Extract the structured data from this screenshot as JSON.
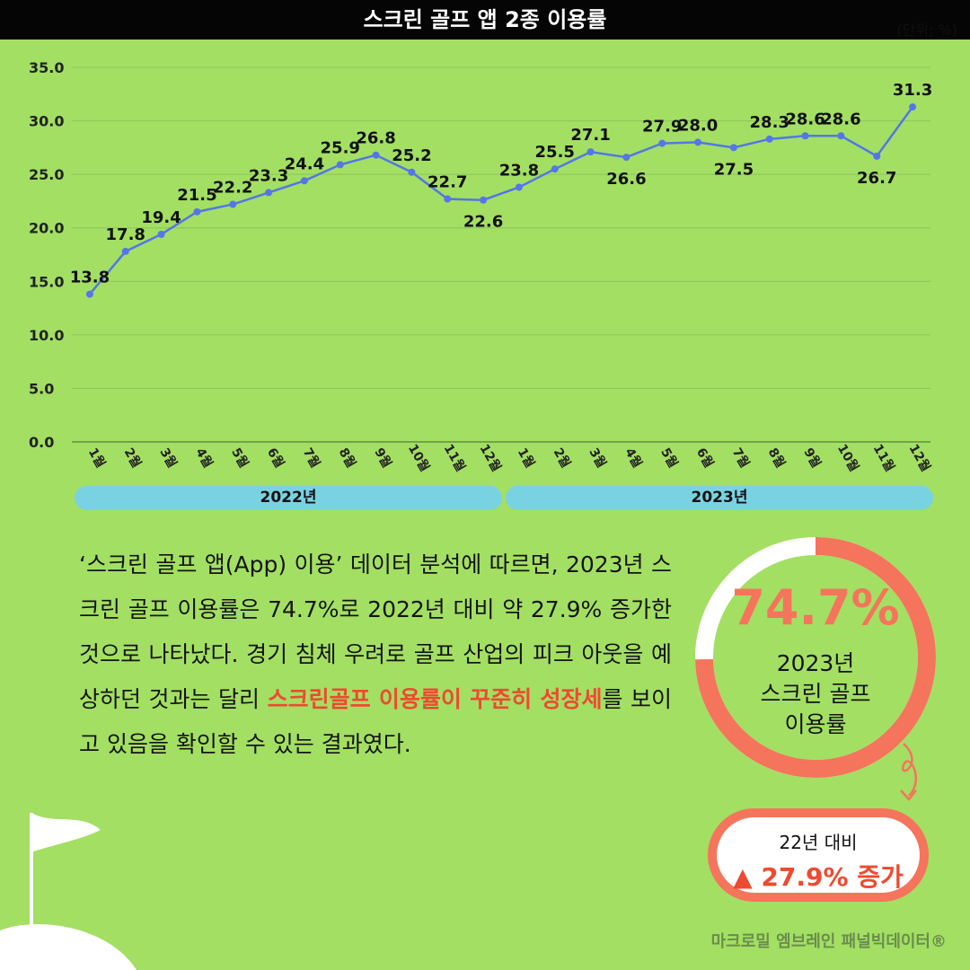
{
  "header": {
    "title": "스크린 골프 앱 2종 이용률",
    "unit": "(단위; %)"
  },
  "chart_data": {
    "type": "line",
    "y_ticks": [
      "0.0",
      "5.0",
      "10.0",
      "15.0",
      "20.0",
      "25.0",
      "30.0",
      "35.0"
    ],
    "ylim": [
      0,
      35
    ],
    "grid": true,
    "color": "#5476e8",
    "categories": [
      "1월",
      "2월",
      "3월",
      "4월",
      "5월",
      "6월",
      "7월",
      "8월",
      "9월",
      "10월",
      "11월",
      "12월",
      "1월",
      "2월",
      "3월",
      "4월",
      "5월",
      "6월",
      "7월",
      "8월",
      "9월",
      "10월",
      "11월",
      "12월"
    ],
    "year_groups": [
      "2022년",
      "2023년"
    ],
    "values": [
      13.8,
      17.8,
      19.4,
      21.5,
      22.2,
      23.3,
      24.4,
      25.9,
      26.8,
      25.2,
      22.7,
      22.6,
      23.8,
      25.5,
      27.1,
      26.6,
      27.9,
      28.0,
      27.5,
      28.3,
      28.6,
      28.6,
      26.7,
      31.3
    ],
    "value_labels": [
      "13.8",
      "17.8",
      "19.4",
      "21.5",
      "22.2",
      "23.3",
      "24.4",
      "25.9",
      "26.8",
      "25.2",
      "22.7",
      "22.6",
      "23.8",
      "25.5",
      "27.1",
      "26.6",
      "27.9",
      "28.0",
      "27.5",
      "28.3",
      "28.6",
      "28.6",
      "26.7",
      "31.3"
    ]
  },
  "body": {
    "text_before": "‘스크린 골프 앱(App) 이용’ 데이터 분석에 따르면, 2023년 스크린 골프 이용률은 74.7%로 2022년 대비 약 27.9% 증가한 것으로 나타났다. 경기 침체 우려로 골프 산업의 피크 아웃을 예상하던 것과는 달리 ",
    "highlight": "스크린골프 이용률이 꾸준히 성장세",
    "text_after": "를 보이고 있음을 확인할 수 있는 결과였다."
  },
  "summary": {
    "percent": "74.7%",
    "percent_value": 74.7,
    "label_lines": [
      "2023년",
      "스크린 골프",
      "이용률"
    ],
    "ring_color": "#f5745c",
    "compare_top": "22년 대비",
    "compare_bottom": "▲ 27.9% 증가"
  },
  "source": "마크로밀 엠브레인 패널빅데이터®"
}
